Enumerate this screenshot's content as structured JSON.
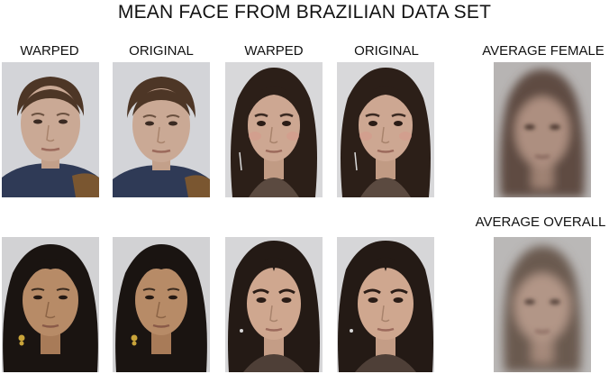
{
  "figure": {
    "title": "MEAN FACE FROM BRAZILIAN DATA SET",
    "column_labels": {
      "col1": "WARPED",
      "col2": "ORIGINAL",
      "col3": "WARPED",
      "col4": "ORIGINAL",
      "average_female": "AVERAGE FEMALE",
      "average_overall": "AVERAGE OVERALL"
    }
  },
  "colors": {
    "background": "#ffffff",
    "photo_background": "#d7d7d9",
    "skin_light": "#c9a894",
    "skin_tan": "#b48866",
    "hair_brown": "#4a3424",
    "hair_dark": "#1f1713"
  }
}
